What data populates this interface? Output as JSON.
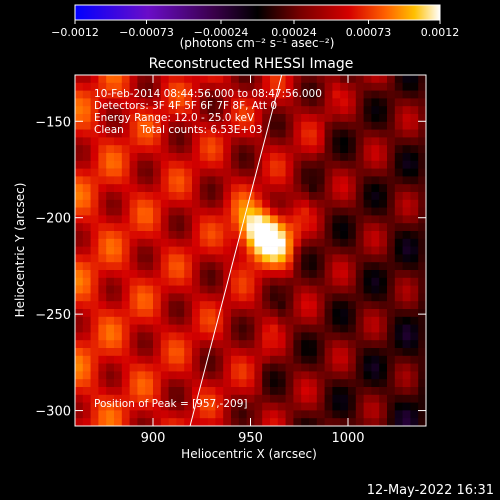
{
  "chart_data": {
    "type": "heatmap",
    "title": "Reconstructed RHESSI Image",
    "xlabel": "Heliocentric X (arcsec)",
    "ylabel": "Heliocentric Y (arcsec)",
    "xlim": [
      860,
      1040
    ],
    "ylim": [
      -308,
      -126
    ],
    "x_ticks": [
      900,
      950,
      1000
    ],
    "x_tick_labels": [
      "900",
      "950",
      "1000"
    ],
    "y_ticks": [
      -150,
      -200,
      -250,
      -300
    ],
    "y_tick_labels": [
      "−150",
      "−200",
      "−250",
      "−300"
    ],
    "colorbar": {
      "min": -0.0012,
      "max": 0.0012,
      "ticks": [
        -0.0012,
        -0.00073,
        -0.00024,
        0.00024,
        0.00073,
        0.0012
      ],
      "tick_labels": [
        "−0.0012",
        "−0.00073",
        "−0.00024",
        "0.00024",
        "0.00073",
        "0.0012"
      ],
      "units_label": "(photons cm⁻² s⁻¹ asec⁻²)",
      "colormap": [
        "#0000ff",
        "#6a0dc8",
        "#400060",
        "#000000",
        "#6a0000",
        "#d40000",
        "#ff5a00",
        "#ffc000",
        "#ffffff"
      ]
    },
    "peak": [
      957,
      -209
    ],
    "limb_line": [
      [
        919,
        -308
      ],
      [
        966,
        -126
      ]
    ],
    "annotations": {
      "time_range": "10-Feb-2014 08:44:56.000 to 08:47:56.000",
      "detectors": "Detectors: 3F 4F 5F 6F 7F 8F, Att 0",
      "energy": "Energy Range: 12.0 - 25.0 keV",
      "clean": "Clean     Total counts: 6.53E+03",
      "peak_position": "Position of Peak = [957,-209]"
    }
  },
  "footer": {
    "timestamp": "12-May-2022 16:31"
  }
}
